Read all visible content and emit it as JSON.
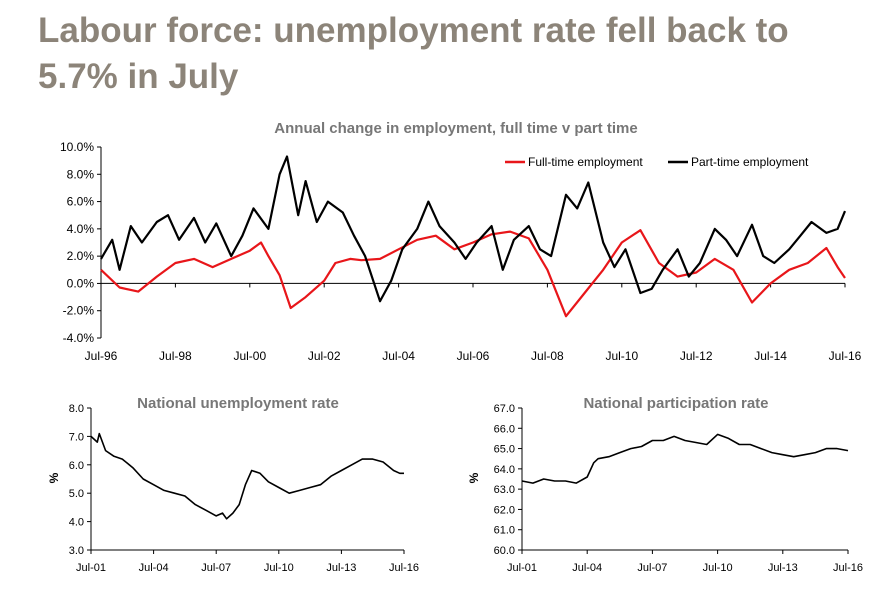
{
  "page_title": "Labour force: unemployment rate fell back to 5.7% in July",
  "colors": {
    "title": "#8c8479",
    "chart_title": "#777777",
    "full_time": "#e8161a",
    "part_time": "#000000"
  },
  "chart_data": [
    {
      "type": "line",
      "title": "Annual change in employment, full time v part time",
      "ylim": [
        -4.0,
        10.0
      ],
      "y_ticks": [
        "-4.0%",
        "-2.0%",
        "0.0%",
        "2.0%",
        "4.0%",
        "6.0%",
        "8.0%",
        "10.0%"
      ],
      "x_ticks": [
        "Jul-96",
        "Jul-98",
        "Jul-00",
        "Jul-02",
        "Jul-04",
        "Jul-06",
        "Jul-08",
        "Jul-10",
        "Jul-12",
        "Jul-14",
        "Jul-16"
      ],
      "x_range": [
        "Jul-96",
        "Jul-16"
      ],
      "legend_position": "top-right",
      "series": [
        {
          "name": "Full-time employment",
          "color": "#e8161a",
          "points": [
            [
              1996.5,
              1.0
            ],
            [
              1997.0,
              -0.3
            ],
            [
              1997.5,
              -0.6
            ],
            [
              1998.0,
              0.5
            ],
            [
              1998.5,
              1.5
            ],
            [
              1999.0,
              1.8
            ],
            [
              1999.5,
              1.2
            ],
            [
              2000.0,
              1.8
            ],
            [
              2000.5,
              2.4
            ],
            [
              2000.8,
              3.0
            ],
            [
              2001.0,
              2.0
            ],
            [
              2001.3,
              0.6
            ],
            [
              2001.6,
              -1.8
            ],
            [
              2002.0,
              -1.0
            ],
            [
              2002.5,
              0.2
            ],
            [
              2002.8,
              1.5
            ],
            [
              2003.2,
              1.8
            ],
            [
              2003.5,
              1.7
            ],
            [
              2004.0,
              1.8
            ],
            [
              2004.5,
              2.5
            ],
            [
              2005.0,
              3.2
            ],
            [
              2005.5,
              3.5
            ],
            [
              2006.0,
              2.5
            ],
            [
              2006.5,
              3.0
            ],
            [
              2007.0,
              3.6
            ],
            [
              2007.5,
              3.8
            ],
            [
              2008.0,
              3.3
            ],
            [
              2008.5,
              1.0
            ],
            [
              2009.0,
              -2.4
            ],
            [
              2009.5,
              -0.7
            ],
            [
              2010.0,
              1.0
            ],
            [
              2010.5,
              3.0
            ],
            [
              2011.0,
              3.9
            ],
            [
              2011.5,
              1.5
            ],
            [
              2012.0,
              0.5
            ],
            [
              2012.5,
              0.8
            ],
            [
              2013.0,
              1.8
            ],
            [
              2013.5,
              1.0
            ],
            [
              2014.0,
              -1.4
            ],
            [
              2014.5,
              0.0
            ],
            [
              2015.0,
              1.0
            ],
            [
              2015.5,
              1.5
            ],
            [
              2016.0,
              2.6
            ],
            [
              2016.3,
              1.2
            ],
            [
              2016.5,
              0.4
            ]
          ]
        },
        {
          "name": "Part-time employment",
          "color": "#000000",
          "points": [
            [
              1996.5,
              1.8
            ],
            [
              1996.8,
              3.2
            ],
            [
              1997.0,
              1.0
            ],
            [
              1997.3,
              4.2
            ],
            [
              1997.6,
              3.0
            ],
            [
              1998.0,
              4.5
            ],
            [
              1998.3,
              5.0
            ],
            [
              1998.6,
              3.2
            ],
            [
              1999.0,
              4.8
            ],
            [
              1999.3,
              3.0
            ],
            [
              1999.6,
              4.4
            ],
            [
              2000.0,
              2.0
            ],
            [
              2000.3,
              3.5
            ],
            [
              2000.6,
              5.5
            ],
            [
              2001.0,
              4.0
            ],
            [
              2001.3,
              8.0
            ],
            [
              2001.5,
              9.3
            ],
            [
              2001.8,
              5.0
            ],
            [
              2002.0,
              7.5
            ],
            [
              2002.3,
              4.5
            ],
            [
              2002.6,
              6.0
            ],
            [
              2003.0,
              5.2
            ],
            [
              2003.3,
              3.5
            ],
            [
              2003.6,
              2.0
            ],
            [
              2004.0,
              -1.3
            ],
            [
              2004.3,
              0.2
            ],
            [
              2004.6,
              2.5
            ],
            [
              2005.0,
              4.0
            ],
            [
              2005.3,
              6.0
            ],
            [
              2005.6,
              4.2
            ],
            [
              2006.0,
              3.0
            ],
            [
              2006.3,
              1.8
            ],
            [
              2006.6,
              3.0
            ],
            [
              2007.0,
              4.2
            ],
            [
              2007.3,
              1.0
            ],
            [
              2007.6,
              3.2
            ],
            [
              2008.0,
              4.2
            ],
            [
              2008.3,
              2.5
            ],
            [
              2008.6,
              2.0
            ],
            [
              2009.0,
              6.5
            ],
            [
              2009.3,
              5.5
            ],
            [
              2009.6,
              7.4
            ],
            [
              2010.0,
              3.0
            ],
            [
              2010.3,
              1.2
            ],
            [
              2010.6,
              2.5
            ],
            [
              2011.0,
              -0.7
            ],
            [
              2011.3,
              -0.4
            ],
            [
              2011.6,
              1.0
            ],
            [
              2012.0,
              2.5
            ],
            [
              2012.3,
              0.5
            ],
            [
              2012.6,
              1.5
            ],
            [
              2013.0,
              4.0
            ],
            [
              2013.3,
              3.2
            ],
            [
              2013.6,
              2.0
            ],
            [
              2014.0,
              4.3
            ],
            [
              2014.3,
              2.0
            ],
            [
              2014.6,
              1.5
            ],
            [
              2015.0,
              2.5
            ],
            [
              2015.3,
              3.5
            ],
            [
              2015.6,
              4.5
            ],
            [
              2016.0,
              3.7
            ],
            [
              2016.3,
              4.0
            ],
            [
              2016.5,
              5.3
            ]
          ]
        }
      ]
    },
    {
      "type": "line",
      "title": "National unemployment rate",
      "ylabel": "%",
      "ylim": [
        3.0,
        8.0
      ],
      "y_ticks": [
        "3.0",
        "4.0",
        "5.0",
        "6.0",
        "7.0",
        "8.0"
      ],
      "x_ticks": [
        "Jul-01",
        "Jul-04",
        "Jul-07",
        "Jul-10",
        "Jul-13",
        "Jul-16"
      ],
      "x_range": [
        "Jul-01",
        "Jul-16"
      ],
      "series": [
        {
          "color": "#000000",
          "points": [
            [
              2001.5,
              7.0
            ],
            [
              2001.8,
              6.8
            ],
            [
              2001.9,
              7.1
            ],
            [
              2002.2,
              6.5
            ],
            [
              2002.6,
              6.3
            ],
            [
              2003.0,
              6.2
            ],
            [
              2003.5,
              5.9
            ],
            [
              2004.0,
              5.5
            ],
            [
              2004.5,
              5.3
            ],
            [
              2005.0,
              5.1
            ],
            [
              2005.5,
              5.0
            ],
            [
              2006.0,
              4.9
            ],
            [
              2006.5,
              4.6
            ],
            [
              2007.0,
              4.4
            ],
            [
              2007.5,
              4.2
            ],
            [
              2007.8,
              4.3
            ],
            [
              2008.0,
              4.1
            ],
            [
              2008.3,
              4.3
            ],
            [
              2008.6,
              4.6
            ],
            [
              2008.9,
              5.3
            ],
            [
              2009.2,
              5.8
            ],
            [
              2009.6,
              5.7
            ],
            [
              2010.0,
              5.4
            ],
            [
              2010.5,
              5.2
            ],
            [
              2011.0,
              5.0
            ],
            [
              2011.5,
              5.1
            ],
            [
              2012.0,
              5.2
            ],
            [
              2012.5,
              5.3
            ],
            [
              2013.0,
              5.6
            ],
            [
              2013.5,
              5.8
            ],
            [
              2014.0,
              6.0
            ],
            [
              2014.5,
              6.2
            ],
            [
              2015.0,
              6.2
            ],
            [
              2015.5,
              6.1
            ],
            [
              2016.0,
              5.8
            ],
            [
              2016.3,
              5.7
            ],
            [
              2016.5,
              5.7
            ]
          ]
        }
      ]
    },
    {
      "type": "line",
      "title": "National participation rate",
      "ylabel": "%",
      "ylim": [
        60.0,
        67.0
      ],
      "y_ticks": [
        "60.0",
        "61.0",
        "62.0",
        "63.0",
        "64.0",
        "65.0",
        "66.0",
        "67.0"
      ],
      "x_ticks": [
        "Jul-01",
        "Jul-04",
        "Jul-07",
        "Jul-10",
        "Jul-13",
        "Jul-16"
      ],
      "x_range": [
        "Jul-01",
        "Jul-16"
      ],
      "series": [
        {
          "color": "#000000",
          "points": [
            [
              2001.5,
              63.4
            ],
            [
              2002.0,
              63.3
            ],
            [
              2002.5,
              63.5
            ],
            [
              2003.0,
              63.4
            ],
            [
              2003.5,
              63.4
            ],
            [
              2004.0,
              63.3
            ],
            [
              2004.5,
              63.6
            ],
            [
              2004.8,
              64.3
            ],
            [
              2005.0,
              64.5
            ],
            [
              2005.5,
              64.6
            ],
            [
              2006.0,
              64.8
            ],
            [
              2006.5,
              65.0
            ],
            [
              2007.0,
              65.1
            ],
            [
              2007.5,
              65.4
            ],
            [
              2008.0,
              65.4
            ],
            [
              2008.5,
              65.6
            ],
            [
              2009.0,
              65.4
            ],
            [
              2009.5,
              65.3
            ],
            [
              2010.0,
              65.2
            ],
            [
              2010.5,
              65.7
            ],
            [
              2011.0,
              65.5
            ],
            [
              2011.5,
              65.2
            ],
            [
              2012.0,
              65.2
            ],
            [
              2012.5,
              65.0
            ],
            [
              2013.0,
              64.8
            ],
            [
              2013.5,
              64.7
            ],
            [
              2014.0,
              64.6
            ],
            [
              2014.5,
              64.7
            ],
            [
              2015.0,
              64.8
            ],
            [
              2015.5,
              65.0
            ],
            [
              2016.0,
              65.0
            ],
            [
              2016.5,
              64.9
            ]
          ]
        }
      ]
    }
  ]
}
